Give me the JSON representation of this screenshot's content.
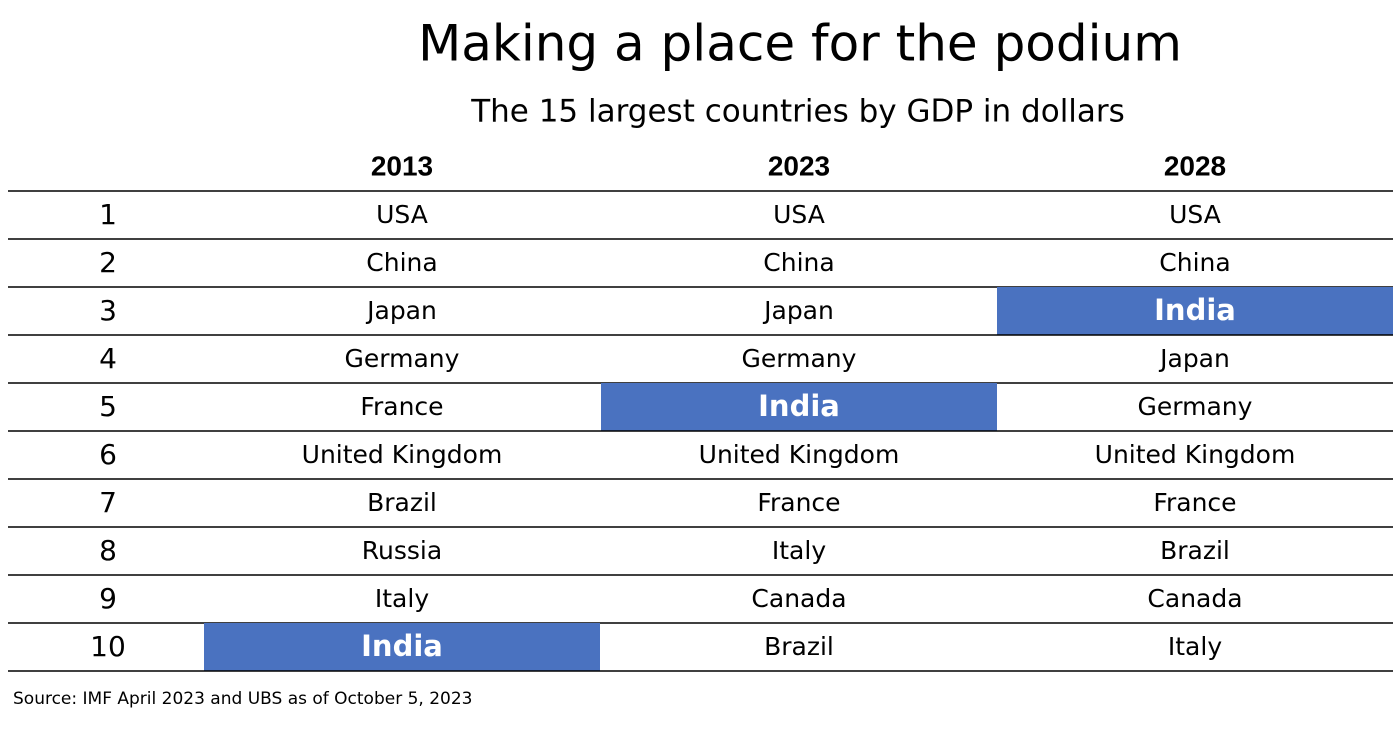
{
  "header": {
    "title": "Making a place for the podium",
    "subtitle": "The 15 largest countries by GDP in dollars"
  },
  "table": {
    "columns": [
      "2013",
      "2023",
      "2028"
    ],
    "rows": [
      [
        1,
        "USA",
        "USA",
        "USA"
      ],
      [
        2,
        "China",
        "China",
        "China"
      ],
      [
        3,
        "Japan",
        "Japan",
        "India"
      ],
      [
        4,
        "Germany",
        "Germany",
        "Japan"
      ],
      [
        5,
        "France",
        "India",
        "Germany"
      ],
      [
        6,
        "United Kingdom",
        "United Kingdom",
        "United Kingdom"
      ],
      [
        7,
        "Brazil",
        "France",
        "France"
      ],
      [
        8,
        "Russia",
        "Italy",
        "Brazil"
      ],
      [
        9,
        "Italy",
        "Canada",
        "Canada"
      ],
      [
        10,
        "India",
        "Brazil",
        "Italy"
      ]
    ],
    "highlight": {
      "text": "India",
      "color": "#4a72c0"
    }
  },
  "footer": {
    "source": "Source: IMF April 2023 and UBS as of October 5, 2023"
  }
}
